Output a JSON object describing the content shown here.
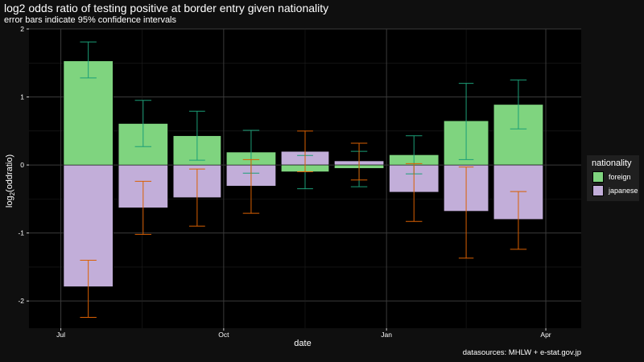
{
  "title": "log2 odds ratio of testing positive at border entry given nationality",
  "subtitle": "error bars indicate 95% confidence intervals",
  "caption": "datasources: MHLW + e-stat.gov.jp",
  "colors": {
    "background": "#000000",
    "page": "#0f0f0f",
    "grid": "#3a3a3a",
    "foreign_fill": "#7fd47f",
    "japanese_fill": "#c2aed9",
    "foreign_error": "#1b9e77",
    "japanese_error": "#d95f02"
  },
  "chart_data": {
    "type": "bar",
    "xlabel": "date",
    "ylabel": "log2(oddratio)",
    "ylim": [
      -2.4,
      2.0
    ],
    "yticks": [
      "-2",
      "-1",
      "0",
      "1",
      "2"
    ],
    "ytick_values": [
      -2,
      -1,
      0,
      1,
      2
    ],
    "xtick_labels": [
      "Jul",
      "Oct",
      "Jan",
      "Apr"
    ],
    "xtick_dates": [
      "2020-07-01",
      "2020-10-01",
      "2021-01-01",
      "2021-04-01"
    ],
    "xlim": [
      "2020-06-13",
      "2021-04-21"
    ],
    "grid": true,
    "legend": {
      "title": "nationality",
      "position": "right",
      "entries": [
        "foreign",
        "japanese"
      ]
    },
    "bar_months": [
      "2020-07",
      "2020-08",
      "2020-09",
      "2020-10",
      "2020-11",
      "2020-12",
      "2021-01",
      "2021-02",
      "2021-03"
    ],
    "series": [
      {
        "name": "foreign",
        "values": [
          1.53,
          0.61,
          0.43,
          0.19,
          -0.1,
          -0.05,
          0.15,
          0.65,
          0.89
        ],
        "ci_low": [
          1.28,
          0.27,
          0.07,
          -0.12,
          -0.35,
          -0.32,
          -0.13,
          0.08,
          0.53
        ],
        "ci_high": [
          1.81,
          0.95,
          0.79,
          0.51,
          0.14,
          0.2,
          0.43,
          1.2,
          1.25
        ]
      },
      {
        "name": "japanese",
        "values": [
          -1.79,
          -0.63,
          -0.48,
          -0.31,
          0.2,
          0.06,
          -0.4,
          -0.68,
          -0.8
        ],
        "ci_low": [
          -2.24,
          -1.02,
          -0.9,
          -0.71,
          -0.1,
          -0.22,
          -0.83,
          -1.37,
          -1.24
        ],
        "ci_high": [
          -1.4,
          -0.24,
          -0.06,
          0.08,
          0.5,
          0.32,
          0.02,
          -0.03,
          -0.39
        ]
      }
    ]
  }
}
